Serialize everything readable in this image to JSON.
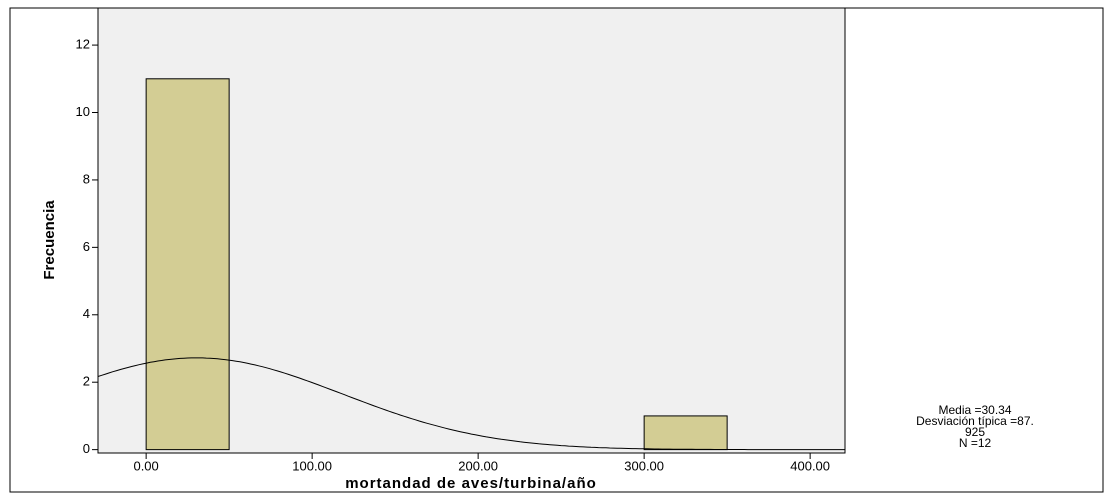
{
  "chart_data": {
    "type": "histogram",
    "xlabel": "mortandad de aves/turbina/año",
    "ylabel": "Frecuencia",
    "bins": [
      0,
      50,
      100,
      150,
      200,
      250,
      300,
      350
    ],
    "counts": [
      11,
      0,
      0,
      0,
      0,
      0,
      1
    ],
    "color": "#d3cd94",
    "xlim": [
      -29,
      421
    ],
    "ylim": [
      -0.1,
      13.1
    ],
    "xticks": [
      {
        "value": 0,
        "label": "0.00"
      },
      {
        "value": 100,
        "label": "100.00"
      },
      {
        "value": 200,
        "label": "200.00"
      },
      {
        "value": 300,
        "label": "300.00"
      },
      {
        "value": 400,
        "label": "400.00"
      }
    ],
    "yticks": [
      0,
      2,
      4,
      6,
      8,
      10,
      12
    ],
    "normal_curve": {
      "mean": 30.34,
      "std": 87.925,
      "n": 12
    },
    "stats_text": [
      "Media =30.34",
      "Desviación típica =87.",
      "925",
      "N =12"
    ]
  }
}
